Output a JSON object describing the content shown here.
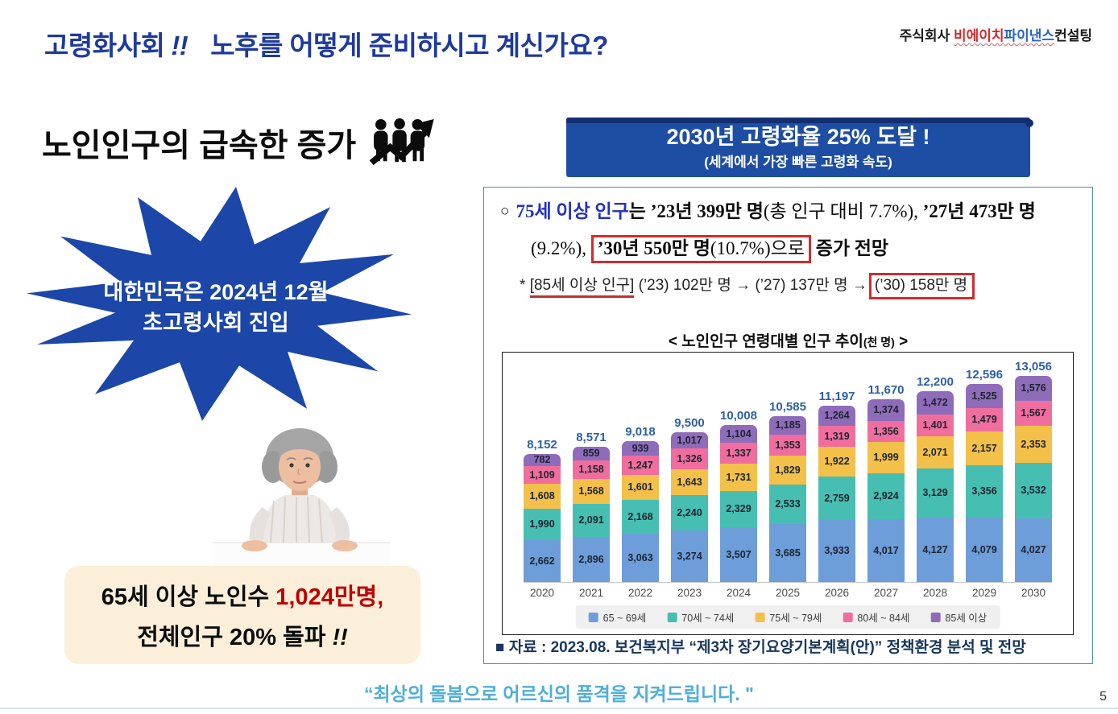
{
  "header": {
    "title_part1": "고령화사회",
    "title_bang": "!!",
    "title_part2": "노후를 어떻게 준비하시고 계신가요?",
    "company_prefix": "주식회사 ",
    "company_red": "비에이치",
    "company_blue": "파이낸스",
    "company_suffix": "컨설팅"
  },
  "left": {
    "section_title": "노인인구의 급속한 증가",
    "starburst_line1": "대한민국은 2024년 12월",
    "starburst_line2": "초고령사회 진입",
    "stat_box": {
      "line1_prefix": "65세 이상 노인수 ",
      "line1_highlight": "1,024만명,",
      "line2_prefix": "전체인구 20% 돌파 ",
      "line2_emphasis": "!!"
    }
  },
  "right": {
    "banner": {
      "line1": "2030년 고령화율 25% 도달 !",
      "line2": "(세계에서 가장 빠른 고령화 속도)"
    },
    "stats_text": {
      "bullet": "○",
      "l1_blue": "75세 이상 인구",
      "l1_t1": "는 ",
      "l1_b1": "’23년 399만 명",
      "l1_n1": "(총 인구 대비 7.7%)",
      "l1_t2": ", ",
      "l1_b2": "’27년 473만 명",
      "l2_n1": "(9.2%), ",
      "l2_box_bold": "’30년 550만 명",
      "l2_box_normal": "(10.7%)으로",
      "l2_b1": " 증가 전망",
      "l3_star": "* ",
      "l3_underlined": "[85세 이상 인구]",
      "l3_mid": " (’23) 102만 명 → (’27) 137만 명 →",
      "l3_boxed": "(’30) 158만 명"
    },
    "source": "■ 자료 : 2023.08. 보건복지부 “제3차 장기요양기본계획(안)” 정책환경 분석 및 전망"
  },
  "footer": {
    "tagline": "“최상의 돌봄으로 어르신의 품격을 지켜드립니다. \"",
    "page_number": "5"
  },
  "chart_data": {
    "type": "bar",
    "stacked": true,
    "title_main": "< 노인인구 연령대별 인구 추이",
    "title_unit": "(천 명)",
    "title_close": " >",
    "categories": [
      "2020",
      "2021",
      "2022",
      "2023",
      "2024",
      "2025",
      "2026",
      "2027",
      "2028",
      "2029",
      "2030"
    ],
    "series": [
      {
        "name": "65 ~ 69세",
        "color": "#6D9ED9",
        "values": [
          2662,
          2896,
          3063,
          3274,
          3507,
          3685,
          3933,
          4017,
          4127,
          4079,
          4027
        ]
      },
      {
        "name": "70세 ~ 74세",
        "color": "#46BFB2",
        "values": [
          1990,
          2091,
          2168,
          2240,
          2329,
          2533,
          2759,
          2924,
          3129,
          3356,
          3532
        ]
      },
      {
        "name": "75세 ~ 79세",
        "color": "#F3C04A",
        "values": [
          1608,
          1568,
          1601,
          1643,
          1731,
          1829,
          1922,
          1999,
          2071,
          2157,
          2353
        ]
      },
      {
        "name": "80세 ~ 84세",
        "color": "#EF6E9D",
        "values": [
          1109,
          1158,
          1247,
          1326,
          1337,
          1353,
          1319,
          1356,
          1401,
          1479,
          1567
        ]
      },
      {
        "name": "85세 이상",
        "color": "#8F6CBA",
        "values": [
          782,
          859,
          939,
          1017,
          1104,
          1185,
          1264,
          1374,
          1472,
          1525,
          1576
        ]
      }
    ],
    "totals": [
      8152,
      8571,
      9018,
      9500,
      10008,
      10585,
      11197,
      11670,
      12200,
      12596,
      13056
    ],
    "xlabel": "",
    "ylabel": "천 명",
    "ylim": [
      0,
      13500
    ],
    "grid": false,
    "legend_position": "bottom"
  }
}
